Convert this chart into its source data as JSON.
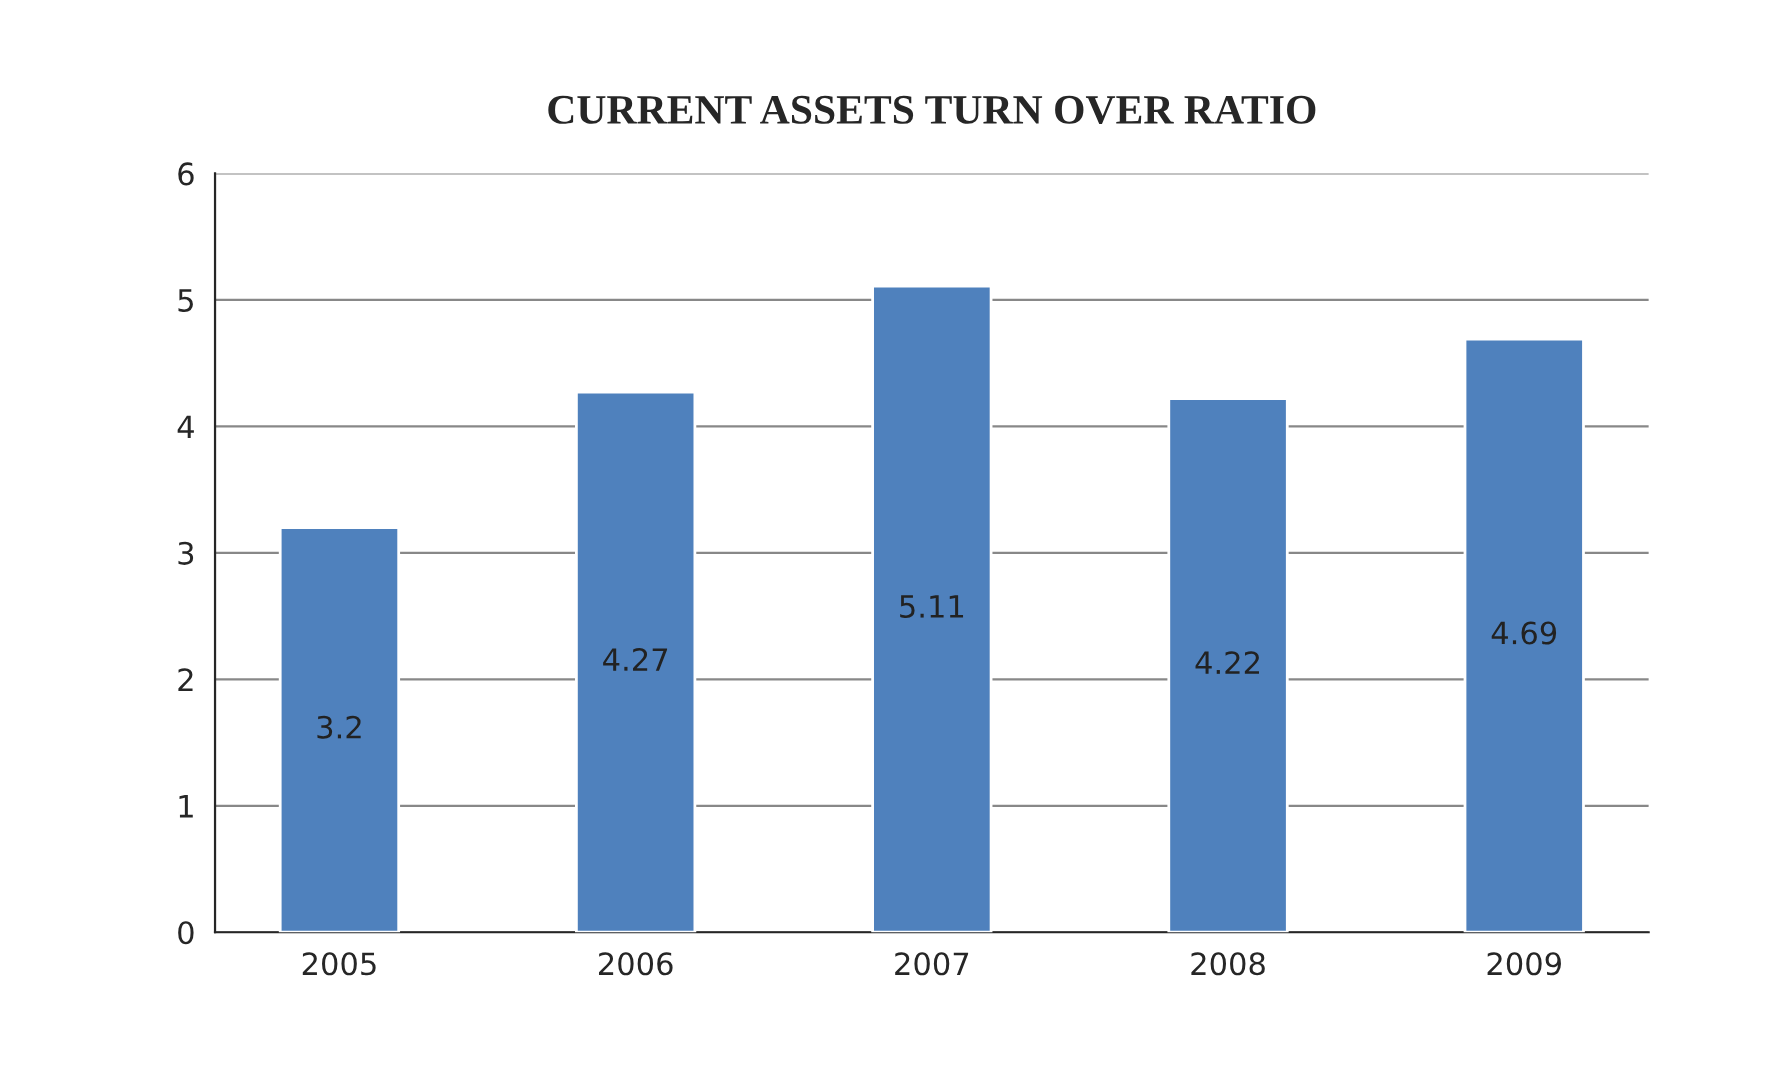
{
  "chart_data": {
    "type": "bar",
    "title": "CURRENT ASSETS TURN OVER RATIO",
    "categories": [
      "2005",
      "2006",
      "2007",
      "2008",
      "2009"
    ],
    "values": [
      3.2,
      4.27,
      5.11,
      4.22,
      4.69
    ],
    "color": "#4f81bd",
    "ylim": [
      0,
      6
    ],
    "yticks": [
      0,
      1,
      2,
      3,
      4,
      5,
      6
    ],
    "grid": "y",
    "data_labels": true
  }
}
